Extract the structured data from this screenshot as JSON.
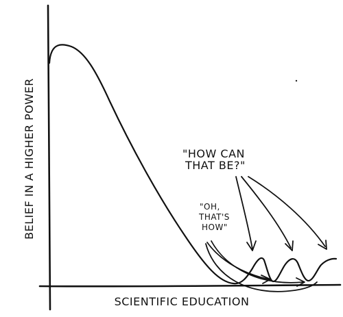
{
  "chart_data": {
    "type": "line",
    "title": "",
    "xlabel": "SCIENTIFIC EDUCATION",
    "ylabel": "BELIEF IN A HIGHER POWER",
    "grid": false,
    "series": [
      {
        "values": "hand-drawn curve: high start, peak, long decline to a minimum, then small oscillating bumps"
      }
    ],
    "annotations": [
      {
        "lines": [
          "\"HOW CAN",
          "THAT BE?\""
        ],
        "points_to": "rising bumps at the right end"
      },
      {
        "lines": [
          "\"OH,",
          "THAT'S",
          "HOW\""
        ],
        "points_to": "troughs after the bumps"
      }
    ]
  }
}
